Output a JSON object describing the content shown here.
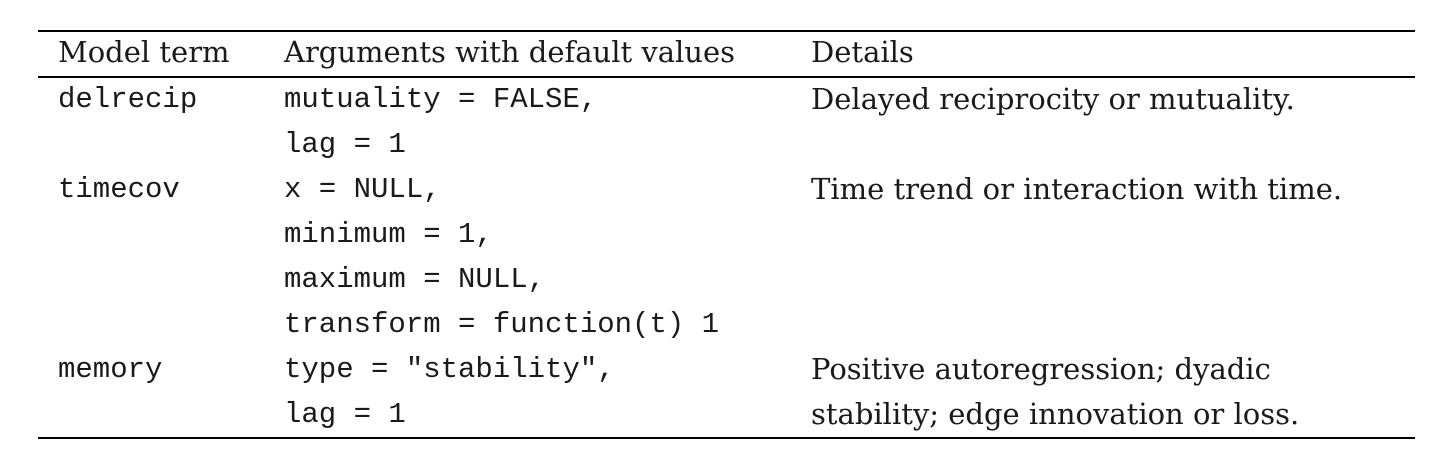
{
  "table": {
    "headers": [
      "Model term",
      "Arguments with default values",
      "Details"
    ],
    "rows": [
      {
        "term": "delrecip",
        "args": [
          "mutuality = FALSE,",
          "lag = 1"
        ],
        "details": [
          "Delayed reciprocity or mutuality."
        ]
      },
      {
        "term": "timecov",
        "args": [
          "x = NULL,",
          "minimum = 1,",
          "maximum = NULL,",
          "transform = function(t) 1"
        ],
        "details": [
          "Time trend or interaction with time."
        ]
      },
      {
        "term": "memory",
        "args": [
          "type = \"stability\",",
          "lag = 1"
        ],
        "details": [
          "Positive autoregression; dyadic",
          "stability; edge innovation or loss."
        ]
      }
    ]
  }
}
